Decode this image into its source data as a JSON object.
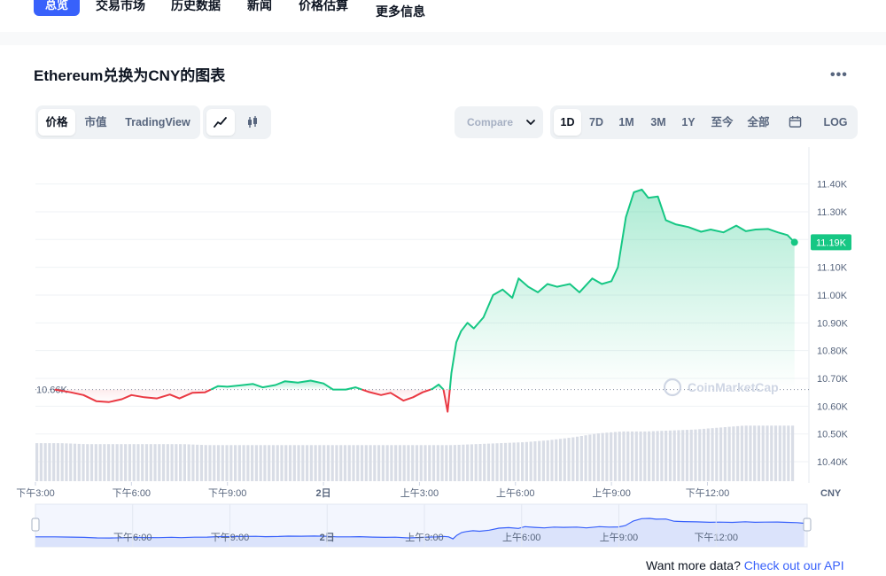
{
  "nav": {
    "tabs": [
      "总览",
      "交易市场",
      "历史数据",
      "新闻",
      "价格估算",
      "更多信息"
    ]
  },
  "title": "Ethereum兑换为CNY的图表",
  "view_tabs": [
    "价格",
    "市值",
    "TradingView"
  ],
  "compare_label": "Compare",
  "ranges": [
    "1D",
    "7D",
    "1M",
    "3M",
    "1Y",
    "至今",
    "全部"
  ],
  "log_label": "LOG",
  "currency": "CNY",
  "watermark": "CoinMarketCap",
  "footer": {
    "text": "Want more data?",
    "link": "Check out our API"
  },
  "colors": {
    "accent": "#3861fb",
    "up": "#16c784",
    "down": "#ea3943"
  },
  "chart_data": {
    "type": "line",
    "y_ticks": [
      11400,
      11300,
      11100,
      11000,
      10900,
      10800,
      10700,
      10600,
      10500,
      10400
    ],
    "y_tick_labels": [
      "11.40K",
      "11.30K",
      "11.10K",
      "11.00K",
      "10.90K",
      "10.80K",
      "10.70K",
      "10.60K",
      "10.50K",
      "10.40K"
    ],
    "ylim": [
      10330,
      11520
    ],
    "x_ticks": [
      {
        "label": "下午3:00",
        "t": 0
      },
      {
        "label": "下午6:00",
        "t": 3
      },
      {
        "label": "下午9:00",
        "t": 6
      },
      {
        "label": "2日",
        "t": 9
      },
      {
        "label": "上午3:00",
        "t": 12
      },
      {
        "label": "上午6:00",
        "t": 15
      },
      {
        "label": "上午9:00",
        "t": 18
      },
      {
        "label": "下午12:00",
        "t": 21
      }
    ],
    "xlim": [
      0,
      23.7
    ],
    "reference_value": 10660,
    "reference_label": "10.66K",
    "current_value": 11190,
    "current_label": "11.19K",
    "series": [
      {
        "points": [
          [
            0.6,
            10660
          ],
          [
            1.1,
            10650
          ],
          [
            1.5,
            10640
          ],
          [
            1.9,
            10618
          ],
          [
            2.3,
            10615
          ],
          [
            2.7,
            10625
          ],
          [
            3.0,
            10640
          ],
          [
            3.4,
            10632
          ],
          [
            3.8,
            10628
          ],
          [
            4.2,
            10642
          ],
          [
            4.5,
            10628
          ],
          [
            4.9,
            10648
          ],
          [
            5.3,
            10650
          ],
          [
            5.7,
            10672
          ],
          [
            6.0,
            10670
          ],
          [
            6.4,
            10675
          ],
          [
            6.8,
            10680
          ],
          [
            7.1,
            10668
          ],
          [
            7.5,
            10676
          ],
          [
            7.8,
            10690
          ],
          [
            8.2,
            10685
          ],
          [
            8.6,
            10692
          ],
          [
            9.0,
            10682
          ],
          [
            9.3,
            10660
          ],
          [
            9.7,
            10660
          ],
          [
            10.0,
            10668
          ],
          [
            10.4,
            10652
          ],
          [
            10.8,
            10640
          ],
          [
            11.1,
            10648
          ],
          [
            11.5,
            10620
          ],
          [
            11.8,
            10632
          ],
          [
            12.1,
            10650
          ],
          [
            12.4,
            10662
          ],
          [
            12.6,
            10678
          ],
          [
            12.75,
            10660
          ],
          [
            12.88,
            10580
          ],
          [
            13.0,
            10720
          ],
          [
            13.15,
            10830
          ],
          [
            13.3,
            10870
          ],
          [
            13.5,
            10900
          ],
          [
            13.7,
            10880
          ],
          [
            14.0,
            10920
          ],
          [
            14.3,
            11000
          ],
          [
            14.6,
            11020
          ],
          [
            14.9,
            10990
          ],
          [
            15.1,
            11060
          ],
          [
            15.4,
            11030
          ],
          [
            15.7,
            11010
          ],
          [
            16.0,
            11040
          ],
          [
            16.3,
            11030
          ],
          [
            16.7,
            11040
          ],
          [
            17.0,
            11010
          ],
          [
            17.4,
            11060
          ],
          [
            17.7,
            11040
          ],
          [
            18.0,
            11050
          ],
          [
            18.2,
            11100
          ],
          [
            18.45,
            11280
          ],
          [
            18.7,
            11370
          ],
          [
            18.95,
            11380
          ],
          [
            19.15,
            11350
          ],
          [
            19.45,
            11355
          ],
          [
            19.7,
            11270
          ],
          [
            20.0,
            11255
          ],
          [
            20.4,
            11245
          ],
          [
            20.8,
            11228
          ],
          [
            21.1,
            11236
          ],
          [
            21.5,
            11226
          ],
          [
            21.9,
            11250
          ],
          [
            22.2,
            11230
          ],
          [
            22.5,
            11236
          ],
          [
            22.9,
            11238
          ],
          [
            23.2,
            11226
          ],
          [
            23.5,
            11216
          ],
          [
            23.72,
            11190
          ]
        ]
      }
    ],
    "volume_note": "relative bar heights",
    "volume": [
      0.39,
      0.39,
      0.38,
      0.38,
      0.38,
      0.38,
      0.38,
      0.37,
      0.37,
      0.37,
      0.37,
      0.37,
      0.37,
      0.37,
      0.37,
      0.37,
      0.37,
      0.37,
      0.38,
      0.39,
      0.4,
      0.42,
      0.45,
      0.49,
      0.51,
      0.51,
      0.52,
      0.53,
      0.55,
      0.57,
      0.57,
      0.57
    ]
  }
}
